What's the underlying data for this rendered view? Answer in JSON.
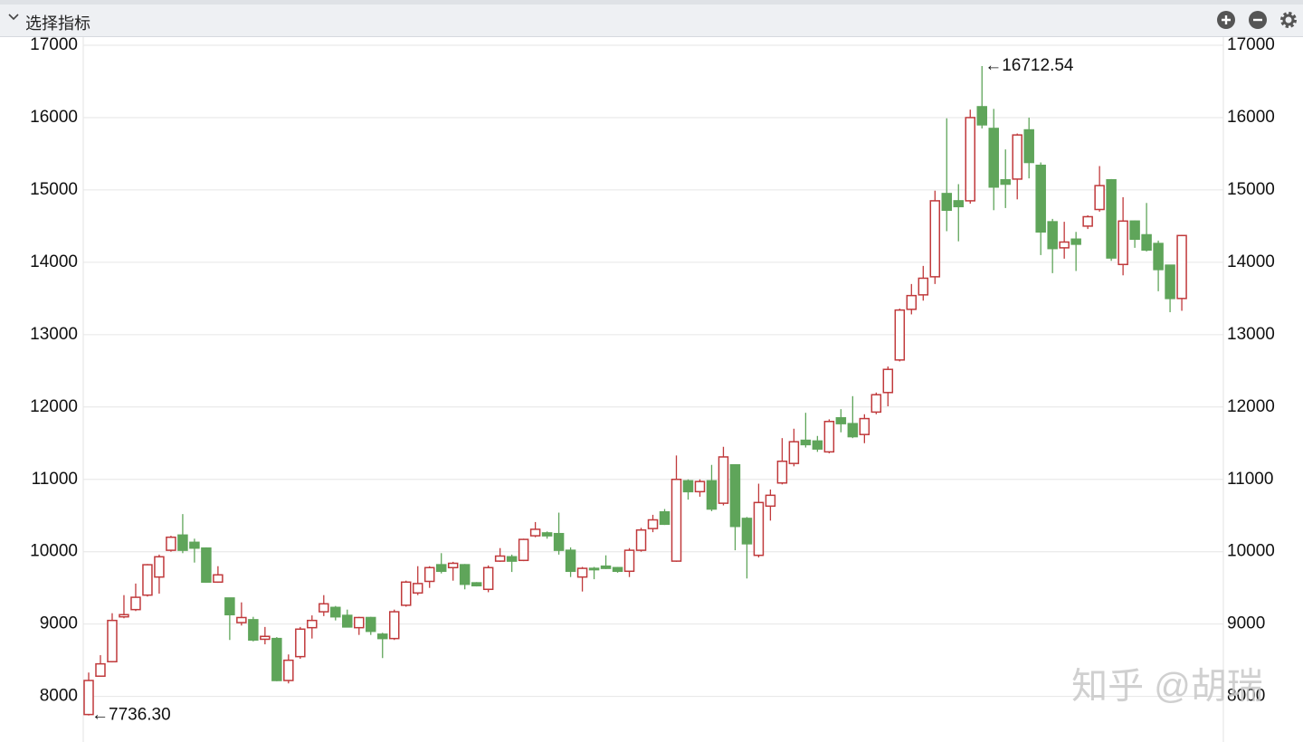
{
  "toolbar": {
    "title": "选择指标"
  },
  "watermark": "知乎 @胡瑞",
  "chart_data": {
    "type": "candlestick",
    "up_color": "#c0393b",
    "down_color": "#5fa55a",
    "ylim": [
      7370,
      17100
    ],
    "yticks": [
      8000,
      9000,
      10000,
      11000,
      12000,
      13000,
      14000,
      15000,
      16000,
      17000
    ],
    "grid": true,
    "open": [
      7750,
      8280,
      8480,
      9100,
      9200,
      9400,
      9650,
      10020,
      10230,
      10130,
      10050,
      9580,
      9360,
      9020,
      9060,
      8790,
      8800,
      8220,
      8550,
      8950,
      9170,
      9230,
      9120,
      8950,
      9090,
      8860,
      8800,
      9260,
      9430,
      9590,
      9820,
      9780,
      9820,
      9570,
      9480,
      9870,
      9930,
      9880,
      10220,
      10260,
      10250,
      10020,
      9650,
      9770,
      9800,
      9780,
      9730,
      10020,
      10320,
      10550,
      9870,
      10980,
      10830,
      10980,
      10670,
      11200,
      10460,
      9950,
      10630,
      10950,
      11220,
      11540,
      11530,
      11380,
      11850,
      11770,
      11620,
      11930,
      12200,
      12650,
      13350,
      13550,
      13800,
      14950,
      14850,
      14850,
      16150,
      15850,
      15140,
      15150,
      15830,
      15340,
      14560,
      14200,
      14320,
      14500,
      14730,
      15140,
      13970,
      14570,
      14380,
      14260,
      13960,
      13500
    ],
    "high": [
      8330,
      8570,
      9150,
      9400,
      9560,
      9830,
      9960,
      10220,
      10520,
      10180,
      10060,
      9800,
      9360,
      9300,
      9100,
      8960,
      8820,
      8580,
      8960,
      9120,
      9400,
      9250,
      9200,
      9100,
      9100,
      8880,
      9200,
      9600,
      9800,
      9800,
      9980,
      9860,
      9830,
      9580,
      9810,
      10050,
      9960,
      10180,
      10410,
      10280,
      10540,
      10060,
      9790,
      9790,
      9950,
      9790,
      10050,
      10330,
      10510,
      10590,
      11330,
      11000,
      11000,
      11200,
      11450,
      11210,
      10480,
      10940,
      10860,
      11570,
      11700,
      11920,
      11600,
      11830,
      11970,
      12150,
      11900,
      12200,
      12560,
      13360,
      13700,
      13950,
      14990,
      15990,
      15080,
      16110,
      16712.54,
      16120,
      15560,
      15780,
      16000,
      15380,
      14600,
      14560,
      14420,
      14650,
      15330,
      15150,
      14900,
      14580,
      14820,
      14300,
      13960,
      14380
    ],
    "low": [
      7736.3,
      8270,
      8470,
      9080,
      9180,
      9380,
      9420,
      10000,
      9980,
      9850,
      9570,
      9570,
      8780,
      8980,
      8760,
      8720,
      8210,
      8180,
      8520,
      8800,
      9110,
      9050,
      8960,
      8850,
      8850,
      8530,
      8780,
      9240,
      9400,
      9500,
      9700,
      9600,
      9480,
      9520,
      9440,
      9860,
      9720,
      9870,
      10200,
      10180,
      9960,
      9650,
      9450,
      9620,
      9760,
      9710,
      9650,
      10000,
      10270,
      10370,
      9860,
      10720,
      10760,
      10560,
      10640,
      10020,
      9630,
      9920,
      10430,
      10930,
      11180,
      11440,
      11380,
      11360,
      11650,
      11570,
      11500,
      11900,
      12010,
      12630,
      13280,
      13470,
      13700,
      14430,
      14290,
      14810,
      15850,
      14720,
      14750,
      14870,
      15160,
      14100,
      13850,
      14050,
      13880,
      14460,
      14700,
      14020,
      13820,
      14200,
      14150,
      13600,
      13310,
      13330
    ],
    "close": [
      8220,
      8450,
      9050,
      9130,
      9370,
      9820,
      9930,
      10200,
      10020,
      10050,
      9580,
      9680,
      9130,
      9090,
      8780,
      8830,
      8220,
      8500,
      8930,
      9050,
      9280,
      9100,
      8960,
      9090,
      8900,
      8800,
      9170,
      9580,
      9560,
      9780,
      9730,
      9840,
      9550,
      9530,
      9780,
      9940,
      9870,
      10170,
      10310,
      10220,
      10020,
      9730,
      9770,
      9760,
      9770,
      9730,
      10020,
      10300,
      10440,
      10380,
      11000,
      10830,
      10970,
      10590,
      11310,
      10350,
      10110,
      10680,
      10780,
      11250,
      11520,
      11480,
      11420,
      11800,
      11770,
      11590,
      11840,
      12170,
      12520,
      13340,
      13540,
      13780,
      14850,
      14720,
      14770,
      16000,
      15900,
      15040,
      15080,
      15760,
      15380,
      14420,
      14190,
      14280,
      14250,
      14630,
      15060,
      14060,
      14570,
      14320,
      14170,
      13900,
      13500,
      14370
    ],
    "annotations": [
      {
        "label": "←16712.54",
        "value": 16712.54,
        "of": "high"
      },
      {
        "label": "←7736.30",
        "value": 7736.3,
        "of": "low"
      }
    ]
  }
}
